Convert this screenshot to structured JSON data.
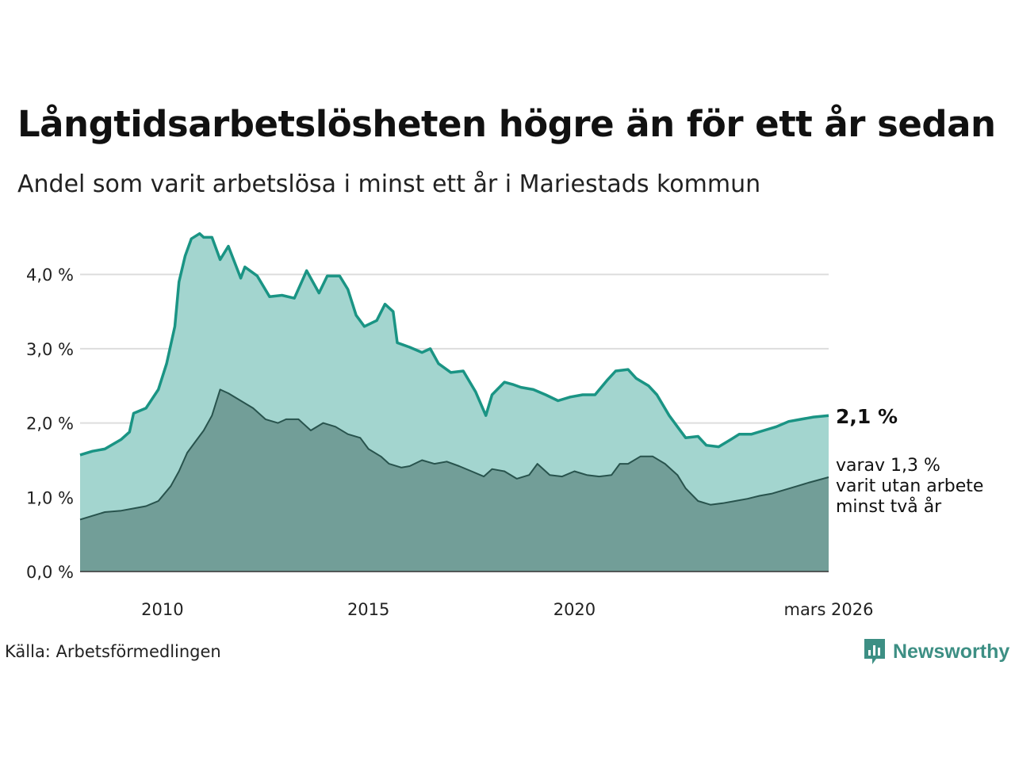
{
  "title": "Långtidsarbetslösheten högre än för ett år sedan",
  "subtitle": "Andel som varit arbetslösa i minst ett år i Mariestads kommun",
  "source": "Källa: Arbetsförmedlingen",
  "logo": "Newsworthy",
  "colors": {
    "line_1yr": "#1a9484",
    "fill_1yr": "#a3d5cf",
    "line_2yr": "#28534d",
    "fill_2yr": "#729e98",
    "grid": "#dddddd"
  },
  "chart_data": {
    "type": "area",
    "title": "Långtidsarbetslösheten högre än för ett år sedan",
    "subtitle": "Andel som varit arbetslösa i minst ett år i Mariestads kommun",
    "xlabel": "",
    "ylabel": "",
    "xlim": [
      2008.0,
      2026.17
    ],
    "ylim": [
      0,
      4.6
    ],
    "yticks": [
      0,
      1,
      2,
      3,
      4
    ],
    "ytick_labels": [
      "0,0 %",
      "1,0 %",
      "2,0 %",
      "3,0 %",
      "4,0 %"
    ],
    "xticks": [
      2010,
      2015,
      2020,
      2026.17
    ],
    "xtick_labels": [
      "2010",
      "2015",
      "2020",
      "mars 2026"
    ],
    "series": [
      {
        "name": "minst ett år",
        "points": [
          [
            2008.0,
            1.57
          ],
          [
            2008.3,
            1.62
          ],
          [
            2008.6,
            1.65
          ],
          [
            2009.0,
            1.78
          ],
          [
            2009.2,
            1.88
          ],
          [
            2009.3,
            2.13
          ],
          [
            2009.6,
            2.2
          ],
          [
            2009.9,
            2.45
          ],
          [
            2010.1,
            2.8
          ],
          [
            2010.3,
            3.3
          ],
          [
            2010.4,
            3.9
          ],
          [
            2010.55,
            4.25
          ],
          [
            2010.7,
            4.48
          ],
          [
            2010.9,
            4.55
          ],
          [
            2011.0,
            4.5
          ],
          [
            2011.2,
            4.5
          ],
          [
            2011.4,
            4.2
          ],
          [
            2011.6,
            4.38
          ],
          [
            2011.9,
            3.95
          ],
          [
            2012.0,
            4.1
          ],
          [
            2012.3,
            3.98
          ],
          [
            2012.6,
            3.7
          ],
          [
            2012.9,
            3.72
          ],
          [
            2013.2,
            3.68
          ],
          [
            2013.5,
            4.05
          ],
          [
            2013.8,
            3.75
          ],
          [
            2014.0,
            3.98
          ],
          [
            2014.3,
            3.98
          ],
          [
            2014.5,
            3.8
          ],
          [
            2014.7,
            3.45
          ],
          [
            2014.9,
            3.3
          ],
          [
            2015.2,
            3.38
          ],
          [
            2015.4,
            3.6
          ],
          [
            2015.6,
            3.5
          ],
          [
            2015.7,
            3.08
          ],
          [
            2016.0,
            3.02
          ],
          [
            2016.3,
            2.95
          ],
          [
            2016.5,
            3.0
          ],
          [
            2016.7,
            2.8
          ],
          [
            2017.0,
            2.68
          ],
          [
            2017.3,
            2.7
          ],
          [
            2017.6,
            2.42
          ],
          [
            2017.85,
            2.1
          ],
          [
            2018.0,
            2.38
          ],
          [
            2018.3,
            2.55
          ],
          [
            2018.5,
            2.52
          ],
          [
            2018.7,
            2.48
          ],
          [
            2019.0,
            2.45
          ],
          [
            2019.3,
            2.38
          ],
          [
            2019.6,
            2.3
          ],
          [
            2019.9,
            2.35
          ],
          [
            2020.2,
            2.38
          ],
          [
            2020.5,
            2.38
          ],
          [
            2020.8,
            2.58
          ],
          [
            2021.0,
            2.7
          ],
          [
            2021.3,
            2.72
          ],
          [
            2021.5,
            2.6
          ],
          [
            2021.8,
            2.5
          ],
          [
            2022.0,
            2.38
          ],
          [
            2022.3,
            2.1
          ],
          [
            2022.5,
            1.95
          ],
          [
            2022.7,
            1.8
          ],
          [
            2023.0,
            1.82
          ],
          [
            2023.2,
            1.7
          ],
          [
            2023.5,
            1.68
          ],
          [
            2023.8,
            1.78
          ],
          [
            2024.0,
            1.85
          ],
          [
            2024.3,
            1.85
          ],
          [
            2024.6,
            1.9
          ],
          [
            2024.9,
            1.95
          ],
          [
            2025.2,
            2.02
          ],
          [
            2025.5,
            2.05
          ],
          [
            2025.8,
            2.08
          ],
          [
            2026.17,
            2.1
          ]
        ]
      },
      {
        "name": "minst två år",
        "points": [
          [
            2008.0,
            0.7
          ],
          [
            2008.3,
            0.75
          ],
          [
            2008.6,
            0.8
          ],
          [
            2009.0,
            0.82
          ],
          [
            2009.3,
            0.85
          ],
          [
            2009.6,
            0.88
          ],
          [
            2009.9,
            0.95
          ],
          [
            2010.2,
            1.15
          ],
          [
            2010.4,
            1.35
          ],
          [
            2010.6,
            1.6
          ],
          [
            2010.8,
            1.75
          ],
          [
            2011.0,
            1.9
          ],
          [
            2011.2,
            2.1
          ],
          [
            2011.4,
            2.45
          ],
          [
            2011.6,
            2.4
          ],
          [
            2011.9,
            2.3
          ],
          [
            2012.2,
            2.2
          ],
          [
            2012.5,
            2.05
          ],
          [
            2012.8,
            2.0
          ],
          [
            2013.0,
            2.05
          ],
          [
            2013.3,
            2.05
          ],
          [
            2013.6,
            1.9
          ],
          [
            2013.9,
            2.0
          ],
          [
            2014.2,
            1.95
          ],
          [
            2014.5,
            1.85
          ],
          [
            2014.8,
            1.8
          ],
          [
            2015.0,
            1.65
          ],
          [
            2015.3,
            1.55
          ],
          [
            2015.5,
            1.45
          ],
          [
            2015.8,
            1.4
          ],
          [
            2016.0,
            1.42
          ],
          [
            2016.3,
            1.5
          ],
          [
            2016.6,
            1.45
          ],
          [
            2016.9,
            1.48
          ],
          [
            2017.2,
            1.42
          ],
          [
            2017.5,
            1.35
          ],
          [
            2017.8,
            1.28
          ],
          [
            2018.0,
            1.38
          ],
          [
            2018.3,
            1.35
          ],
          [
            2018.6,
            1.25
          ],
          [
            2018.9,
            1.3
          ],
          [
            2019.1,
            1.45
          ],
          [
            2019.4,
            1.3
          ],
          [
            2019.7,
            1.28
          ],
          [
            2020.0,
            1.35
          ],
          [
            2020.3,
            1.3
          ],
          [
            2020.6,
            1.28
          ],
          [
            2020.9,
            1.3
          ],
          [
            2021.1,
            1.45
          ],
          [
            2021.3,
            1.45
          ],
          [
            2021.6,
            1.55
          ],
          [
            2021.9,
            1.55
          ],
          [
            2022.2,
            1.45
          ],
          [
            2022.5,
            1.3
          ],
          [
            2022.7,
            1.12
          ],
          [
            2023.0,
            0.95
          ],
          [
            2023.3,
            0.9
          ],
          [
            2023.6,
            0.92
          ],
          [
            2023.9,
            0.95
          ],
          [
            2024.2,
            0.98
          ],
          [
            2024.5,
            1.02
          ],
          [
            2024.8,
            1.05
          ],
          [
            2025.1,
            1.1
          ],
          [
            2025.4,
            1.15
          ],
          [
            2025.7,
            1.2
          ],
          [
            2026.17,
            1.27
          ]
        ]
      }
    ],
    "annotations": [
      "2,1 %",
      "varav 1,3 %",
      "varit utan arbete",
      "minst två år"
    ]
  }
}
